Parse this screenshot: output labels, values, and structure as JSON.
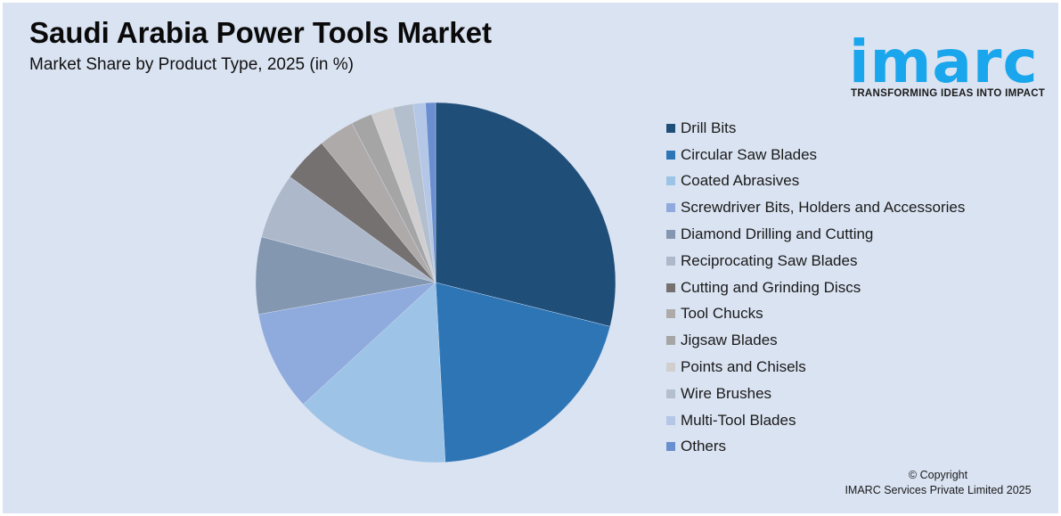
{
  "header": {
    "title": "Saudi Arabia Power Tools Market",
    "subtitle": "Market Share by Product Type, 2025 (in %)"
  },
  "logo": {
    "wordmark": "imarc",
    "tagline": "TRANSFORMING IDEAS INTO IMPACT",
    "color": "#1aa6ec"
  },
  "footer": {
    "copyright_line1": "© Copyright",
    "copyright_line2": "IMARC Services Private Limited 2025"
  },
  "chart_data": {
    "type": "pie",
    "title": "Saudi Arabia Power Tools Market",
    "subtitle": "Market Share by Product Type, 2025 (in %)",
    "start_angle_deg": 0,
    "direction": "clockwise",
    "legend_position": "right",
    "data_labels": false,
    "categories": [
      "Drill Bits",
      "Circular Saw Blades",
      "Coated Abrasives",
      "Screwdriver Bits, Holders and Accessories",
      "Diamond Drilling and Cutting",
      "Reciprocating Saw Blades",
      "Cutting and Grinding Discs",
      "Tool Chucks",
      "Jigsaw Blades",
      "Points and Chisels",
      "Wire Brushes",
      "Multi-Tool Blades",
      "Others"
    ],
    "values": [
      28.9,
      20.2,
      14.0,
      9.0,
      6.9,
      5.9,
      4.1,
      3.2,
      1.9,
      2.0,
      1.8,
      1.1,
      0.9
    ],
    "colors": [
      "#1f4e79",
      "#2e75b6",
      "#9dc3e6",
      "#8faadc",
      "#8497b0",
      "#adb9ca",
      "#767171",
      "#aeaaaa",
      "#a5a5a5",
      "#d0cece",
      "#b4bfcd",
      "#b4c7e7",
      "#6a8fd0"
    ]
  }
}
